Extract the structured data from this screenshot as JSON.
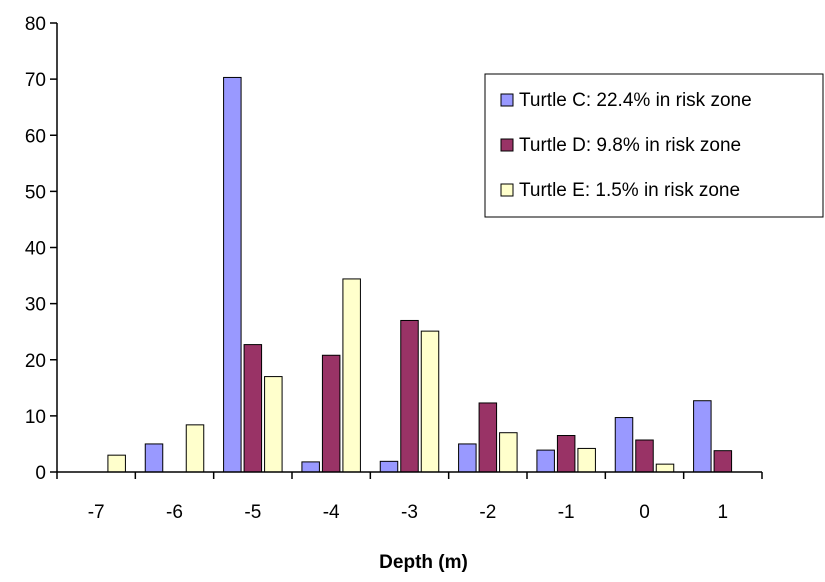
{
  "chart_data": {
    "type": "bar",
    "title": "",
    "xlabel": "Depth (m)",
    "ylabel": "",
    "ylim": [
      0,
      80
    ],
    "yticks": [
      "0",
      "10",
      "20",
      "30",
      "40",
      "50",
      "60",
      "70",
      "80"
    ],
    "categories": [
      "-7",
      "-6",
      "-5",
      "-4",
      "-3",
      "-2",
      "-1",
      "0",
      "1"
    ],
    "grid": false,
    "legend_position": "top-right",
    "series": [
      {
        "name": "Turtle C: 22.4% in risk zone",
        "color": "#9999ff",
        "values": [
          0,
          5,
          70.3,
          1.8,
          1.9,
          5,
          3.9,
          9.7,
          12.7
        ]
      },
      {
        "name": "Turtle D: 9.8% in risk zone",
        "color": "#993366",
        "values": [
          0,
          0,
          22.7,
          20.8,
          27,
          12.3,
          6.5,
          5.7,
          3.8
        ]
      },
      {
        "name": "Turtle E: 1.5% in risk zone",
        "color": "#ffffcc",
        "values": [
          3,
          8.4,
          17,
          34.4,
          25.1,
          7,
          4.2,
          1.4,
          0
        ]
      }
    ]
  }
}
